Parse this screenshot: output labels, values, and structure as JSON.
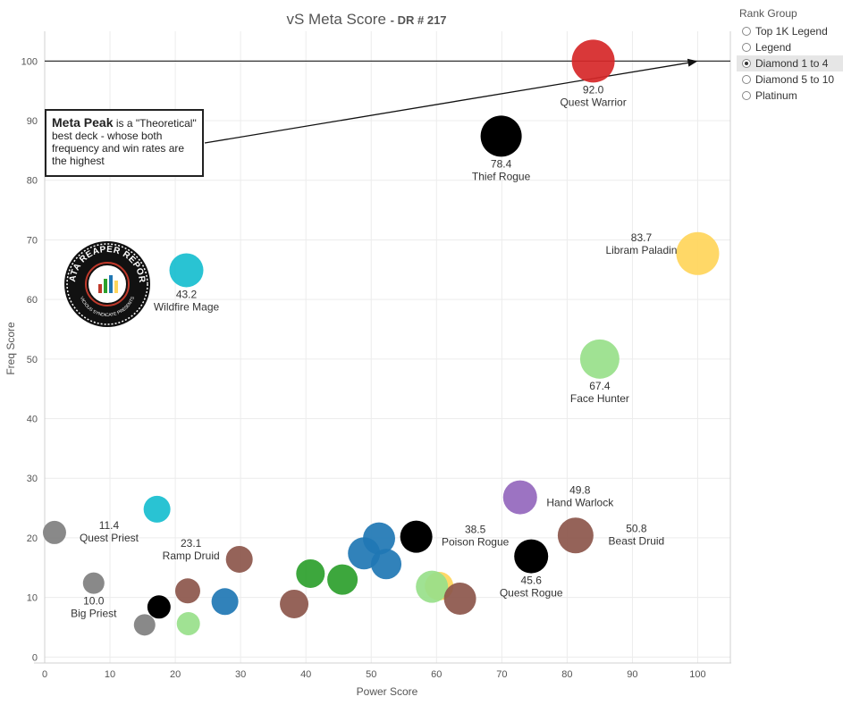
{
  "title": {
    "main": "vS Meta Score",
    "sub": "- DR # 217"
  },
  "rank_group": {
    "title": "Rank Group",
    "options": [
      "Top 1K Legend",
      "Legend",
      "Diamond 1 to 4",
      "Diamond 5 to 10",
      "Platinum"
    ],
    "selected_index": 2
  },
  "callout": {
    "strong": "Meta Peak",
    "rest": "is a \"Theoretical\" best deck - whose both frequency and win rates are the highest"
  },
  "logo": {
    "top_text": "DATA REAPER REPORT",
    "bottom_text": "VICIOUS SYNDICATE PRESENTS"
  },
  "chart_data": {
    "type": "scatter",
    "xlabel": "Power Score",
    "ylabel": "Freq Score",
    "xlim": [
      0,
      105
    ],
    "ylim": [
      -1,
      105
    ],
    "xticks": [
      0,
      10,
      20,
      30,
      40,
      50,
      60,
      70,
      80,
      90,
      100
    ],
    "yticks": [
      0,
      10,
      20,
      30,
      40,
      50,
      60,
      70,
      80,
      90,
      100
    ],
    "grid": true,
    "reference_line": {
      "y": 100,
      "label": "Meta Peak"
    },
    "annotation_arrow": {
      "to": [
        100,
        100
      ]
    },
    "points": [
      {
        "x": 84.0,
        "y": 100.0,
        "r": 24,
        "color": "#d62728",
        "name": "Quest Warrior",
        "score": "92.0",
        "label_pos": "below"
      },
      {
        "x": 69.9,
        "y": 87.4,
        "r": 23,
        "color": "#000000",
        "name": "Thief Rogue",
        "score": "78.4",
        "label_pos": "below"
      },
      {
        "x": 100.0,
        "y": 67.7,
        "r": 24,
        "color": "#ffd55a",
        "name": "Libram Paladin",
        "score": "83.7",
        "label_pos": "left"
      },
      {
        "x": 85.0,
        "y": 50.0,
        "r": 22,
        "color": "#98df8a",
        "name": "Face Hunter",
        "score": "67.4",
        "label_pos": "below"
      },
      {
        "x": 21.7,
        "y": 64.9,
        "r": 19,
        "color": "#17becf",
        "name": "Wildfire Mage",
        "score": "43.2",
        "label_pos": "below"
      },
      {
        "x": 72.8,
        "y": 26.8,
        "r": 19,
        "color": "#9467bd",
        "name": "Hand Warlock",
        "score": "49.8",
        "label_pos": "right"
      },
      {
        "x": 81.3,
        "y": 20.4,
        "r": 20,
        "color": "#8c564b",
        "name": "Beast Druid",
        "score": "50.8",
        "label_pos": "right"
      },
      {
        "x": 74.5,
        "y": 16.9,
        "r": 19,
        "color": "#000000",
        "name": "Quest Rogue",
        "score": "45.6",
        "label_pos": "below"
      },
      {
        "x": 56.9,
        "y": 20.2,
        "r": 18,
        "color": "#000000",
        "name": "Poison Rogue",
        "score": "38.5",
        "label_pos": "right"
      },
      {
        "x": 1.5,
        "y": 20.9,
        "r": 13,
        "color": "#7f7f7f",
        "name": "Quest Priest",
        "score": "11.4",
        "label_pos": "right"
      },
      {
        "x": 7.5,
        "y": 12.4,
        "r": 12,
        "color": "#7f7f7f",
        "name": "Big Priest",
        "score": "10.0",
        "label_pos": "below"
      },
      {
        "x": 29.8,
        "y": 16.4,
        "r": 15,
        "color": "#8c564b",
        "name": "Ramp Druid",
        "score": "23.1",
        "label_pos": "left"
      },
      {
        "x": 17.2,
        "y": 24.8,
        "r": 15,
        "color": "#17becf"
      },
      {
        "x": 21.9,
        "y": 11.1,
        "r": 14,
        "color": "#8c564b"
      },
      {
        "x": 17.5,
        "y": 8.4,
        "r": 13,
        "color": "#000000"
      },
      {
        "x": 15.3,
        "y": 5.4,
        "r": 12,
        "color": "#7f7f7f"
      },
      {
        "x": 22.0,
        "y": 5.6,
        "r": 13,
        "color": "#98df8a"
      },
      {
        "x": 27.6,
        "y": 9.3,
        "r": 15,
        "color": "#1f77b4"
      },
      {
        "x": 38.2,
        "y": 8.9,
        "r": 16,
        "color": "#8c564b"
      },
      {
        "x": 40.7,
        "y": 14.0,
        "r": 16,
        "color": "#2ca02c"
      },
      {
        "x": 45.6,
        "y": 13.0,
        "r": 17,
        "color": "#2ca02c"
      },
      {
        "x": 48.9,
        "y": 17.4,
        "r": 18,
        "color": "#1f77b4"
      },
      {
        "x": 51.2,
        "y": 19.9,
        "r": 18,
        "color": "#1f77b4"
      },
      {
        "x": 52.3,
        "y": 15.6,
        "r": 17,
        "color": "#1f77b4"
      },
      {
        "x": 60.4,
        "y": 11.9,
        "r": 16,
        "color": "#ffd55a"
      },
      {
        "x": 59.3,
        "y": 11.8,
        "r": 18,
        "color": "#98df8a"
      },
      {
        "x": 63.6,
        "y": 9.8,
        "r": 18,
        "color": "#8c564b"
      }
    ]
  }
}
